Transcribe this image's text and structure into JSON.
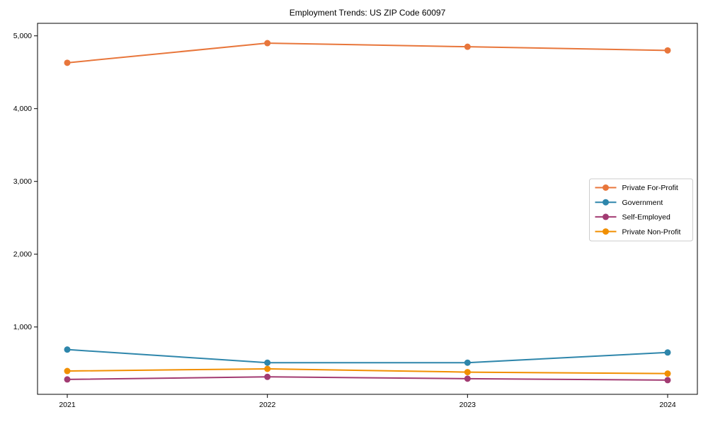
{
  "chart_data": {
    "type": "line",
    "title": "Employment Trends: US ZIP Code 60097",
    "x": [
      2021,
      2022,
      2023,
      2024
    ],
    "x_tick_labels": [
      "2021",
      "2022",
      "2023",
      "2024"
    ],
    "y_ticks": [
      1000,
      2000,
      3000,
      4000,
      5000
    ],
    "y_tick_labels": [
      "1,000",
      "2,000",
      "3,000",
      "4,000",
      "5,000"
    ],
    "ylim": [
      75,
      5172
    ],
    "grid": false,
    "legend_position": "center-right",
    "background_color": "#ffffff",
    "axis_color": "#000000",
    "series": [
      {
        "name": "Private For-Profit",
        "color": "#E8763B",
        "values": [
          4630,
          4900,
          4850,
          4800
        ]
      },
      {
        "name": "Government",
        "color": "#2E86AB",
        "values": [
          690,
          510,
          510,
          650
        ]
      },
      {
        "name": "Self-Employed",
        "color": "#A23B72",
        "values": [
          280,
          315,
          290,
          270
        ]
      },
      {
        "name": "Private Non-Profit",
        "color": "#F18F01",
        "values": [
          395,
          425,
          380,
          360
        ]
      }
    ]
  }
}
